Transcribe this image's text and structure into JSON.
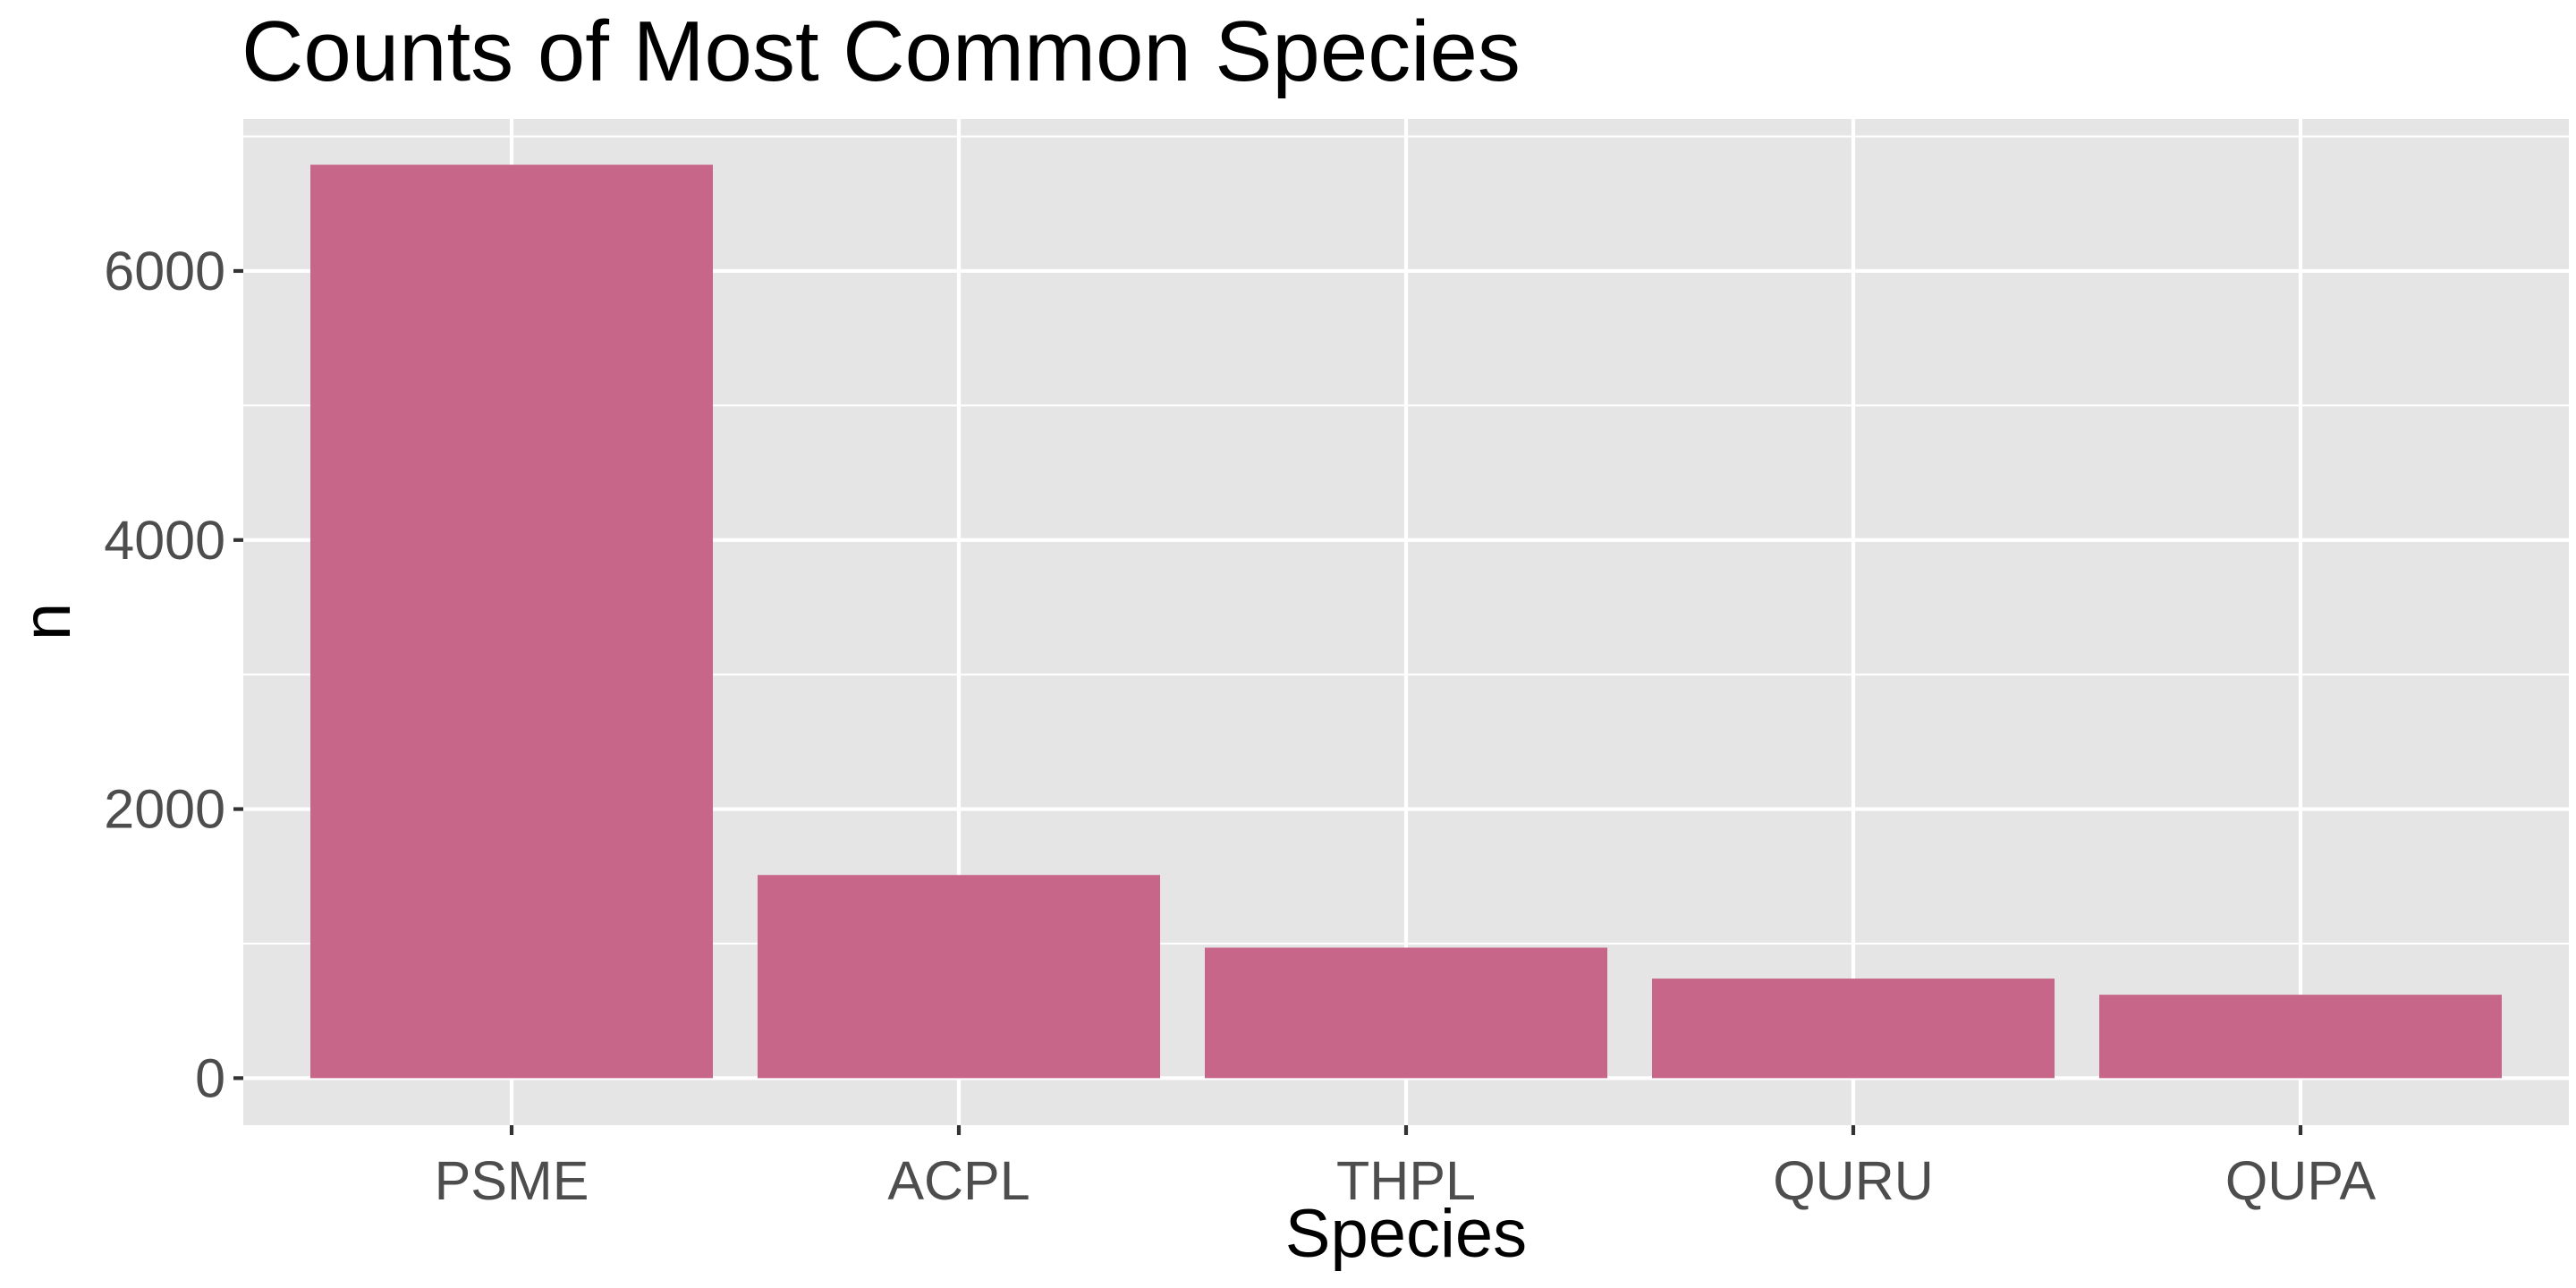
{
  "chart_data": {
    "type": "bar",
    "title": "Counts of Most Common Species",
    "xlabel": "Species",
    "ylabel": "n",
    "categories": [
      "PSME",
      "ACPL",
      "THPL",
      "QURU",
      "QUPA"
    ],
    "values": [
      6790,
      1510,
      970,
      740,
      620
    ],
    "ylim": [
      -350,
      7130
    ],
    "yticks": [
      0,
      2000,
      4000,
      6000
    ],
    "ytick_labels": [
      "0",
      "2000",
      "4000",
      "6000"
    ],
    "grid": true,
    "legend": "none",
    "colors": {
      "bar": "#C76689",
      "panel": "#E5E5E5",
      "grid": "#FFFFFF",
      "tick_text": "#4D4D4D",
      "axis_text": "#000000"
    }
  }
}
